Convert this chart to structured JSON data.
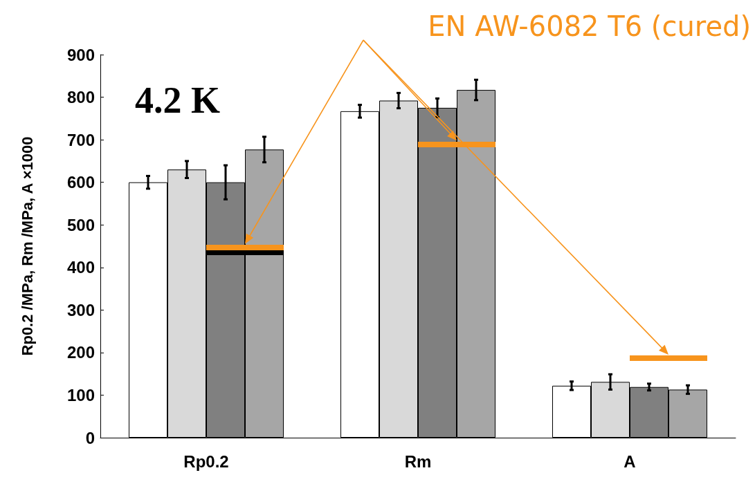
{
  "chart_data": {
    "type": "bar",
    "ylabel": "Rp0.2 /MPa, Rm /MPa, A ×1000",
    "categories": [
      "Rp0.2",
      "Rm",
      "A"
    ],
    "series": [
      {
        "color": "#ffffff",
        "values": [
          600,
          767,
          122
        ],
        "errors": [
          15,
          15,
          10
        ]
      },
      {
        "color": "#d9d9d9",
        "values": [
          630,
          792,
          131
        ],
        "errors": [
          20,
          18,
          18
        ]
      },
      {
        "color": "#808080",
        "values": [
          600,
          775,
          119
        ],
        "errors": [
          40,
          22,
          8
        ]
      },
      {
        "color": "#a6a6a6",
        "values": [
          677,
          817,
          113
        ],
        "errors": [
          30,
          24,
          10
        ]
      }
    ],
    "ref_lines": [
      {
        "axis": "y",
        "value": 447,
        "color": "#f7941d"
      },
      {
        "axis": "y",
        "value": 690,
        "color": "#f7941d"
      },
      {
        "axis": "y",
        "value": 187,
        "color": "#f7941d"
      },
      {
        "axis": "y",
        "value": 435,
        "color": "#000000"
      }
    ],
    "ylim": [
      0,
      900
    ],
    "yticks": [
      0,
      100,
      200,
      300,
      400,
      500,
      600,
      700,
      800,
      900
    ],
    "grid": false,
    "annotations": [
      "4.2 K",
      "EN AW-6082 T6 (cured)"
    ]
  }
}
